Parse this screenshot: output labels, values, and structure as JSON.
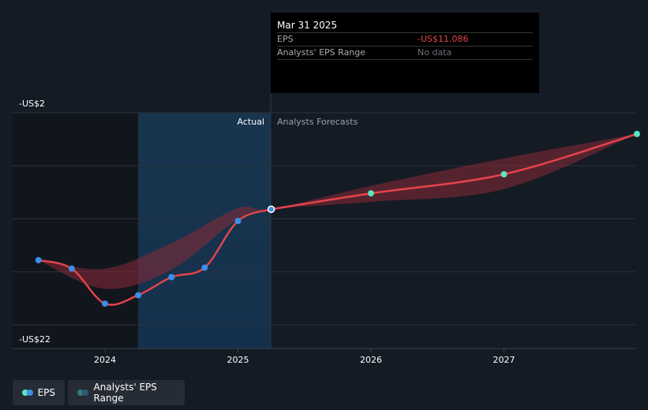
{
  "chart_data": {
    "type": "line",
    "y_tick_labels": [
      "-US$2",
      "-US$22"
    ],
    "ylim": [
      -22,
      -2
    ],
    "x_ticks": [
      "2024",
      "2025",
      "2026",
      "2027"
    ],
    "region_labels": {
      "actual": "Actual",
      "forecast": "Analysts Forecasts"
    },
    "series": [
      {
        "name": "EPS",
        "points": [
          {
            "x": 2023.5,
            "y": -15.9
          },
          {
            "x": 2023.75,
            "y": -16.7
          },
          {
            "x": 2024.0,
            "y": -20.0
          },
          {
            "x": 2024.25,
            "y": -19.2
          },
          {
            "x": 2024.5,
            "y": -17.5
          },
          {
            "x": 2024.75,
            "y": -16.6
          },
          {
            "x": 2025.0,
            "y": -12.2
          },
          {
            "x": 2025.25,
            "y": -11.1
          }
        ]
      },
      {
        "name": "EPS forecast",
        "points": [
          {
            "x": 2025.25,
            "y": -11.1
          },
          {
            "x": 2026.0,
            "y": -9.6
          },
          {
            "x": 2027.0,
            "y": -7.8
          },
          {
            "x": 2028.0,
            "y": -4.0
          }
        ]
      }
    ],
    "range": [
      {
        "x": 2023.5,
        "low": -15.9,
        "high": -15.9
      },
      {
        "x": 2024.0,
        "low": -18.6,
        "high": -16.7
      },
      {
        "x": 2024.5,
        "low": -16.8,
        "high": -14.3
      },
      {
        "x": 2025.0,
        "low": -12.0,
        "high": -11.0
      },
      {
        "x": 2025.25,
        "low": -11.1,
        "high": -11.1
      },
      {
        "x": 2026.0,
        "low": -10.4,
        "high": -8.9
      },
      {
        "x": 2027.0,
        "low": -9.2,
        "high": -6.3
      },
      {
        "x": 2028.0,
        "low": -4.0,
        "high": -4.0
      }
    ],
    "colors": {
      "line": "#e5434a",
      "actual_marker": "#3b8fe6",
      "forecast_marker": "#5be3c0",
      "range_fill": "#8a2a36",
      "highlight": "#1a3e5c"
    }
  },
  "tooltip": {
    "date": "Mar 31 2025",
    "eps_label": "EPS",
    "eps_value": "-US$11.086",
    "range_label": "Analysts' EPS Range",
    "range_value": "No data"
  },
  "legend": {
    "eps": "EPS",
    "range": "Analysts' EPS Range"
  }
}
